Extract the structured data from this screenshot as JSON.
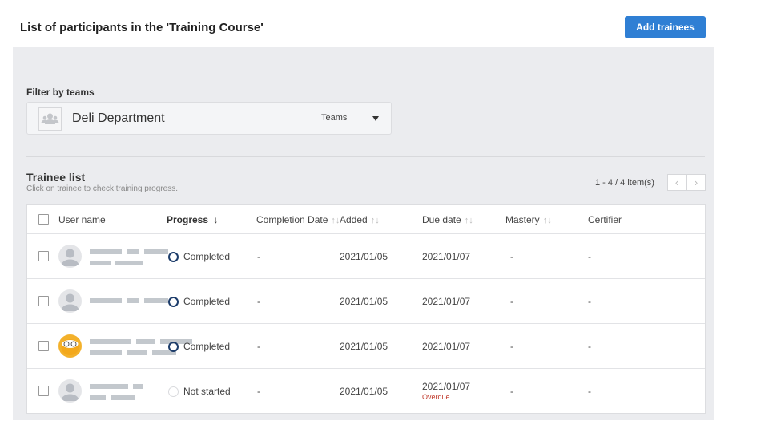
{
  "header": {
    "title": "List of participants in the 'Training Course'",
    "add_button": "Add trainees"
  },
  "filter": {
    "label": "Filter by teams",
    "selected": "Deli Department",
    "type_label": "Teams"
  },
  "list": {
    "title": "Trainee list",
    "subtitle": "Click on trainee to check training progress.",
    "pagination": "1 - 4 / 4 item(s)"
  },
  "columns": {
    "user": "User name",
    "progress": "Progress",
    "progress_sort": "↓",
    "completion": "Completion Date",
    "added": "Added",
    "due": "Due date",
    "mastery": "Mastery",
    "certifier": "Certifier",
    "sort_icon": "↑↓"
  },
  "accent": "#2f7fd4",
  "rows": [
    {
      "progress": "Completed",
      "completion": "-",
      "added": "2021/01/05",
      "due": "2021/01/07",
      "due_note": "",
      "mastery": "-",
      "certifier": "-",
      "avatar": "default"
    },
    {
      "progress": "Completed",
      "completion": "-",
      "added": "2021/01/05",
      "due": "2021/01/07",
      "due_note": "",
      "mastery": "-",
      "certifier": "-",
      "avatar": "default"
    },
    {
      "progress": "Completed",
      "completion": "-",
      "added": "2021/01/05",
      "due": "2021/01/07",
      "due_note": "",
      "mastery": "-",
      "certifier": "-",
      "avatar": "owl"
    },
    {
      "progress": "Not started",
      "completion": "-",
      "added": "2021/01/05",
      "due": "2021/01/07",
      "due_note": "Overdue",
      "mastery": "-",
      "certifier": "-",
      "avatar": "default"
    }
  ]
}
